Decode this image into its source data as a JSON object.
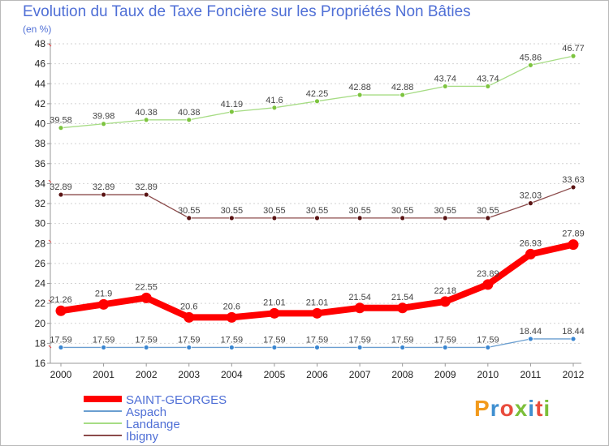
{
  "title": "Evolution du Taux de Taxe Foncière sur les Propriétés Non Bâties",
  "unit": "(en %)",
  "logo": {
    "text": "Proxiti",
    "colors": [
      "#f29a1c",
      "#3f8fd0",
      "#e94b3c",
      "#7cbf3a",
      "#3f8fd0",
      "#e94b3c",
      "#7cbf3a"
    ]
  },
  "chart_data": {
    "type": "line",
    "title": "Evolution du Taux de Taxe Foncière sur les Propriétés Non Bâties",
    "ylabel": "(en %)",
    "xlabel": "",
    "x": [
      "2000",
      "2001",
      "2002",
      "2003",
      "2004",
      "2005",
      "2006",
      "2007",
      "2008",
      "2009",
      "2010",
      "2011",
      "2012"
    ],
    "ylim": [
      16,
      48
    ],
    "yticks": [
      16,
      18,
      20,
      22,
      24,
      26,
      28,
      30,
      32,
      34,
      36,
      38,
      40,
      42,
      44,
      46,
      48
    ],
    "grid": "horizontal dashed",
    "legend_position": "bottom-left",
    "series": [
      {
        "name": "SAINT-GEORGES",
        "color": "#ff0000",
        "marker": "#ff0000",
        "width": "thick",
        "values": [
          21.26,
          21.9,
          22.55,
          20.6,
          20.6,
          21.01,
          21.01,
          21.54,
          21.54,
          22.18,
          23.89,
          26.93,
          27.89
        ],
        "labels": [
          "21.26",
          "21.9",
          "22.55",
          "20.6",
          "20.6",
          "21.01",
          "21.01",
          "21.54",
          "21.54",
          "22.18",
          "23.89",
          "26.93",
          "27.89"
        ]
      },
      {
        "name": "Aspach",
        "color": "#6a9ed0",
        "marker": "#3a86d1",
        "width": "thin",
        "values": [
          17.59,
          17.59,
          17.59,
          17.59,
          17.59,
          17.59,
          17.59,
          17.59,
          17.59,
          17.59,
          17.59,
          18.44,
          18.44
        ],
        "labels": [
          "17.59",
          "17.59",
          "17.59",
          "17.59",
          "17.59",
          "17.59",
          "17.59",
          "17.59",
          "17.59",
          "17.59",
          "17.59",
          "18.44",
          "18.44"
        ]
      },
      {
        "name": "Landange",
        "color": "#a6dc84",
        "marker": "#7dc43f",
        "width": "thin",
        "values": [
          39.58,
          39.98,
          40.38,
          40.38,
          41.19,
          41.6,
          42.25,
          42.88,
          42.88,
          43.74,
          43.74,
          45.86,
          46.77
        ],
        "labels": [
          "39.58",
          "39.98",
          "40.38",
          "40.38",
          "41.19",
          "41.6",
          "42.25",
          "42.88",
          "42.88",
          "43.74",
          "43.74",
          "45.86",
          "46.77"
        ]
      },
      {
        "name": "Ibigny",
        "color": "#8b4a4a",
        "marker": "#5a1414",
        "width": "thin",
        "values": [
          32.89,
          32.89,
          32.89,
          30.55,
          30.55,
          30.55,
          30.55,
          30.55,
          30.55,
          30.55,
          30.55,
          32.03,
          33.63
        ],
        "labels": [
          "32.89",
          "32.89",
          "32.89",
          "30.55",
          "30.55",
          "30.55",
          "30.55",
          "30.55",
          "30.55",
          "30.55",
          "30.55",
          "32.03",
          "33.63"
        ]
      }
    ]
  }
}
